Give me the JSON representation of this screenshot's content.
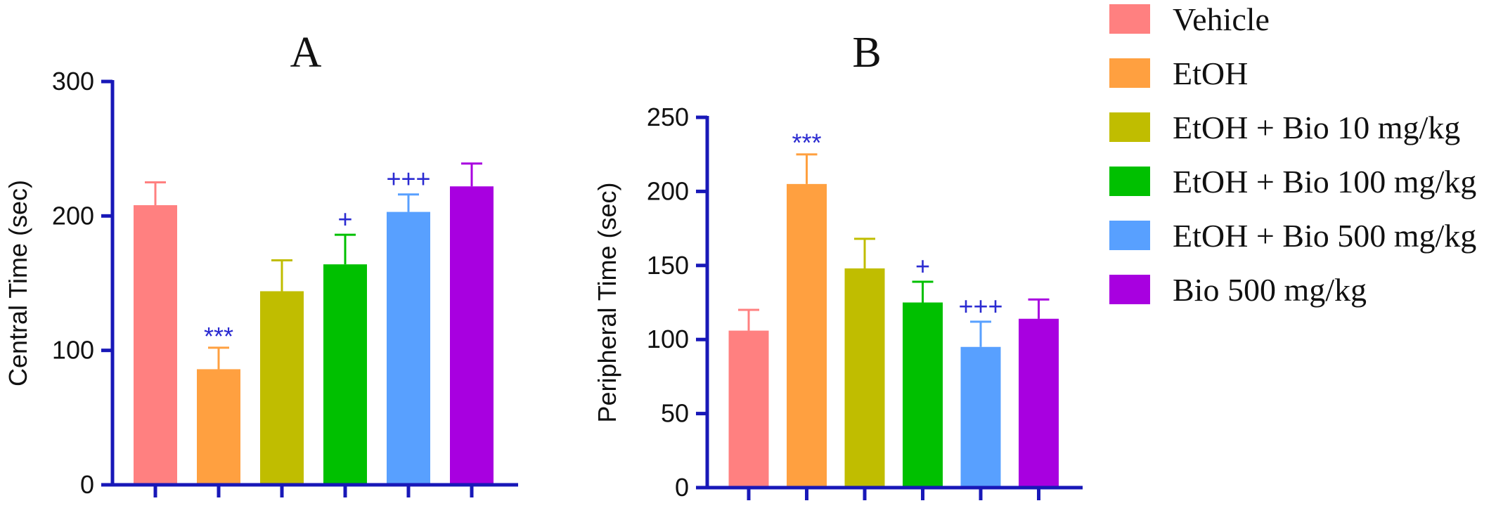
{
  "legend": [
    {
      "label": "Vehicle",
      "color": "#ff8080"
    },
    {
      "label": "EtOH",
      "color": "#ffa040"
    },
    {
      "label": "EtOH + Bio 10 mg/kg",
      "color": "#c0bd00"
    },
    {
      "label": "EtOH + Bio 100 mg/kg",
      "color": "#00c000"
    },
    {
      "label": "EtOH + Bio 500 mg/kg",
      "color": "#58a0ff"
    },
    {
      "label": "Bio 500 mg/kg",
      "color": "#a800e0"
    }
  ],
  "chart_data": [
    {
      "type": "bar",
      "title": "A",
      "ylabel": "Central Time (sec)",
      "ylim": [
        0,
        300
      ],
      "yticks": [
        0,
        100,
        200,
        300
      ],
      "categories": [
        "Vehicle",
        "EtOH",
        "EtOH + Bio 10 mg/kg",
        "EtOH + Bio 100 mg/kg",
        "EtOH + Bio 500 mg/kg",
        "Bio 500 mg/kg"
      ],
      "values": [
        208,
        86,
        144,
        164,
        203,
        222
      ],
      "errors": [
        17,
        16,
        23,
        22,
        13,
        17
      ],
      "annotations": [
        "",
        "***",
        "",
        "+",
        "+++",
        ""
      ]
    },
    {
      "type": "bar",
      "title": "B",
      "ylabel": "Peripheral Time (sec)",
      "ylim": [
        0,
        250
      ],
      "yticks": [
        0,
        50,
        100,
        150,
        200,
        250
      ],
      "categories": [
        "Vehicle",
        "EtOH",
        "EtOH + Bio 10 mg/kg",
        "EtOH + Bio 100 mg/kg",
        "EtOH + Bio 500 mg/kg",
        "Bio 500 mg/kg"
      ],
      "values": [
        106,
        205,
        148,
        125,
        95,
        114
      ],
      "errors": [
        14,
        20,
        20,
        14,
        17,
        13
      ],
      "annotations": [
        "",
        "***",
        "",
        "+",
        "+++",
        ""
      ]
    }
  ]
}
